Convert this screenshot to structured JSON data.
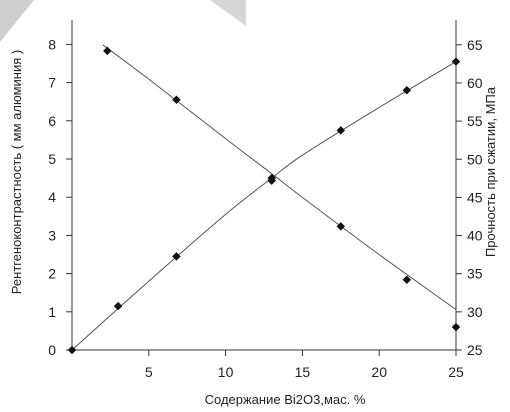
{
  "chart_data": {
    "type": "scatter",
    "xlabel": "Содержание Bi2O3,мас. %",
    "ylabel_left": "Рентгеноконтрастность ( мм алюминия )",
    "ylabel_right": "Прочность при сжатии, МПа",
    "xlim": [
      0,
      25
    ],
    "x_ticks": [
      5,
      10,
      15,
      20,
      25
    ],
    "ylim_left": [
      0,
      8.7
    ],
    "y_ticks_left": [
      0,
      1,
      2,
      3,
      4,
      5,
      6,
      7,
      8
    ],
    "ylim_right": [
      25,
      66
    ],
    "y_ticks_right": [
      25,
      30,
      35,
      40,
      45,
      50,
      55,
      60,
      65
    ],
    "grid": false,
    "legend": "none",
    "series": [
      {
        "axis": "left",
        "x": [
          0,
          3.0,
          6.8,
          13.0,
          17.5,
          21.8,
          25.0
        ],
        "y": [
          0.0,
          1.15,
          2.45,
          4.5,
          5.75,
          6.8,
          7.55
        ],
        "fit_x": [
          0,
          5,
          10,
          13,
          15,
          20,
          25
        ],
        "fit_y": [
          0.0,
          1.8,
          3.55,
          4.5,
          5.1,
          6.35,
          7.55
        ]
      },
      {
        "axis": "right",
        "x": [
          2.3,
          6.8,
          13.0,
          17.5,
          21.8,
          25.0
        ],
        "y": [
          64.2,
          57.8,
          47.2,
          41.2,
          34.2,
          28.0
        ],
        "fit_x": [
          2.0,
          5,
          10,
          13,
          15,
          20,
          25
        ],
        "fit_y": [
          65.0,
          60.5,
          52.7,
          48.1,
          45.0,
          37.5,
          30.3
        ]
      }
    ]
  }
}
